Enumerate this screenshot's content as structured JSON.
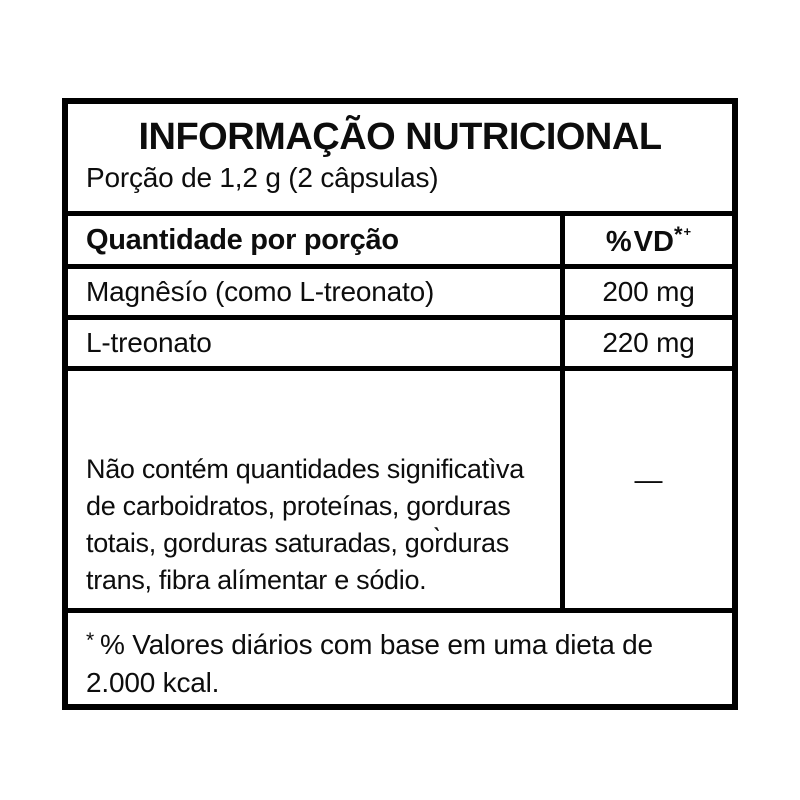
{
  "label": {
    "title": "INFORMAÇÃO NUTRICIONAL",
    "serving": "Porção de 1,2 g (2 câpsulas)",
    "columns": {
      "left_header": "Quantidade por porção",
      "right_header_percent": "%",
      "right_header_vd": "VD",
      "right_header_sup_star": "*",
      "right_header_sup_plus": "+"
    },
    "rows": [
      {
        "name": "Magnêsío (como L-treonato)",
        "value": "200 mg"
      },
      {
        "name": "L-treonato",
        "value": "220 mg"
      }
    ],
    "no_significant": {
      "lines": [
        "Não contém quantidades significatìva",
        "de carboidratos, proteínas, gorduras",
        "totais, gorduras saturadas, gor̀duras",
        "trans, fibra alímentar e sódio."
      ],
      "value": "—"
    },
    "footnote": {
      "star": "*",
      "line1": "% Valores diários com base em uma dieta de",
      "line2": "2.000 kcal."
    },
    "colors": {
      "border": "#000000",
      "text": "#0d0d0d",
      "background": "#ffffff"
    }
  }
}
